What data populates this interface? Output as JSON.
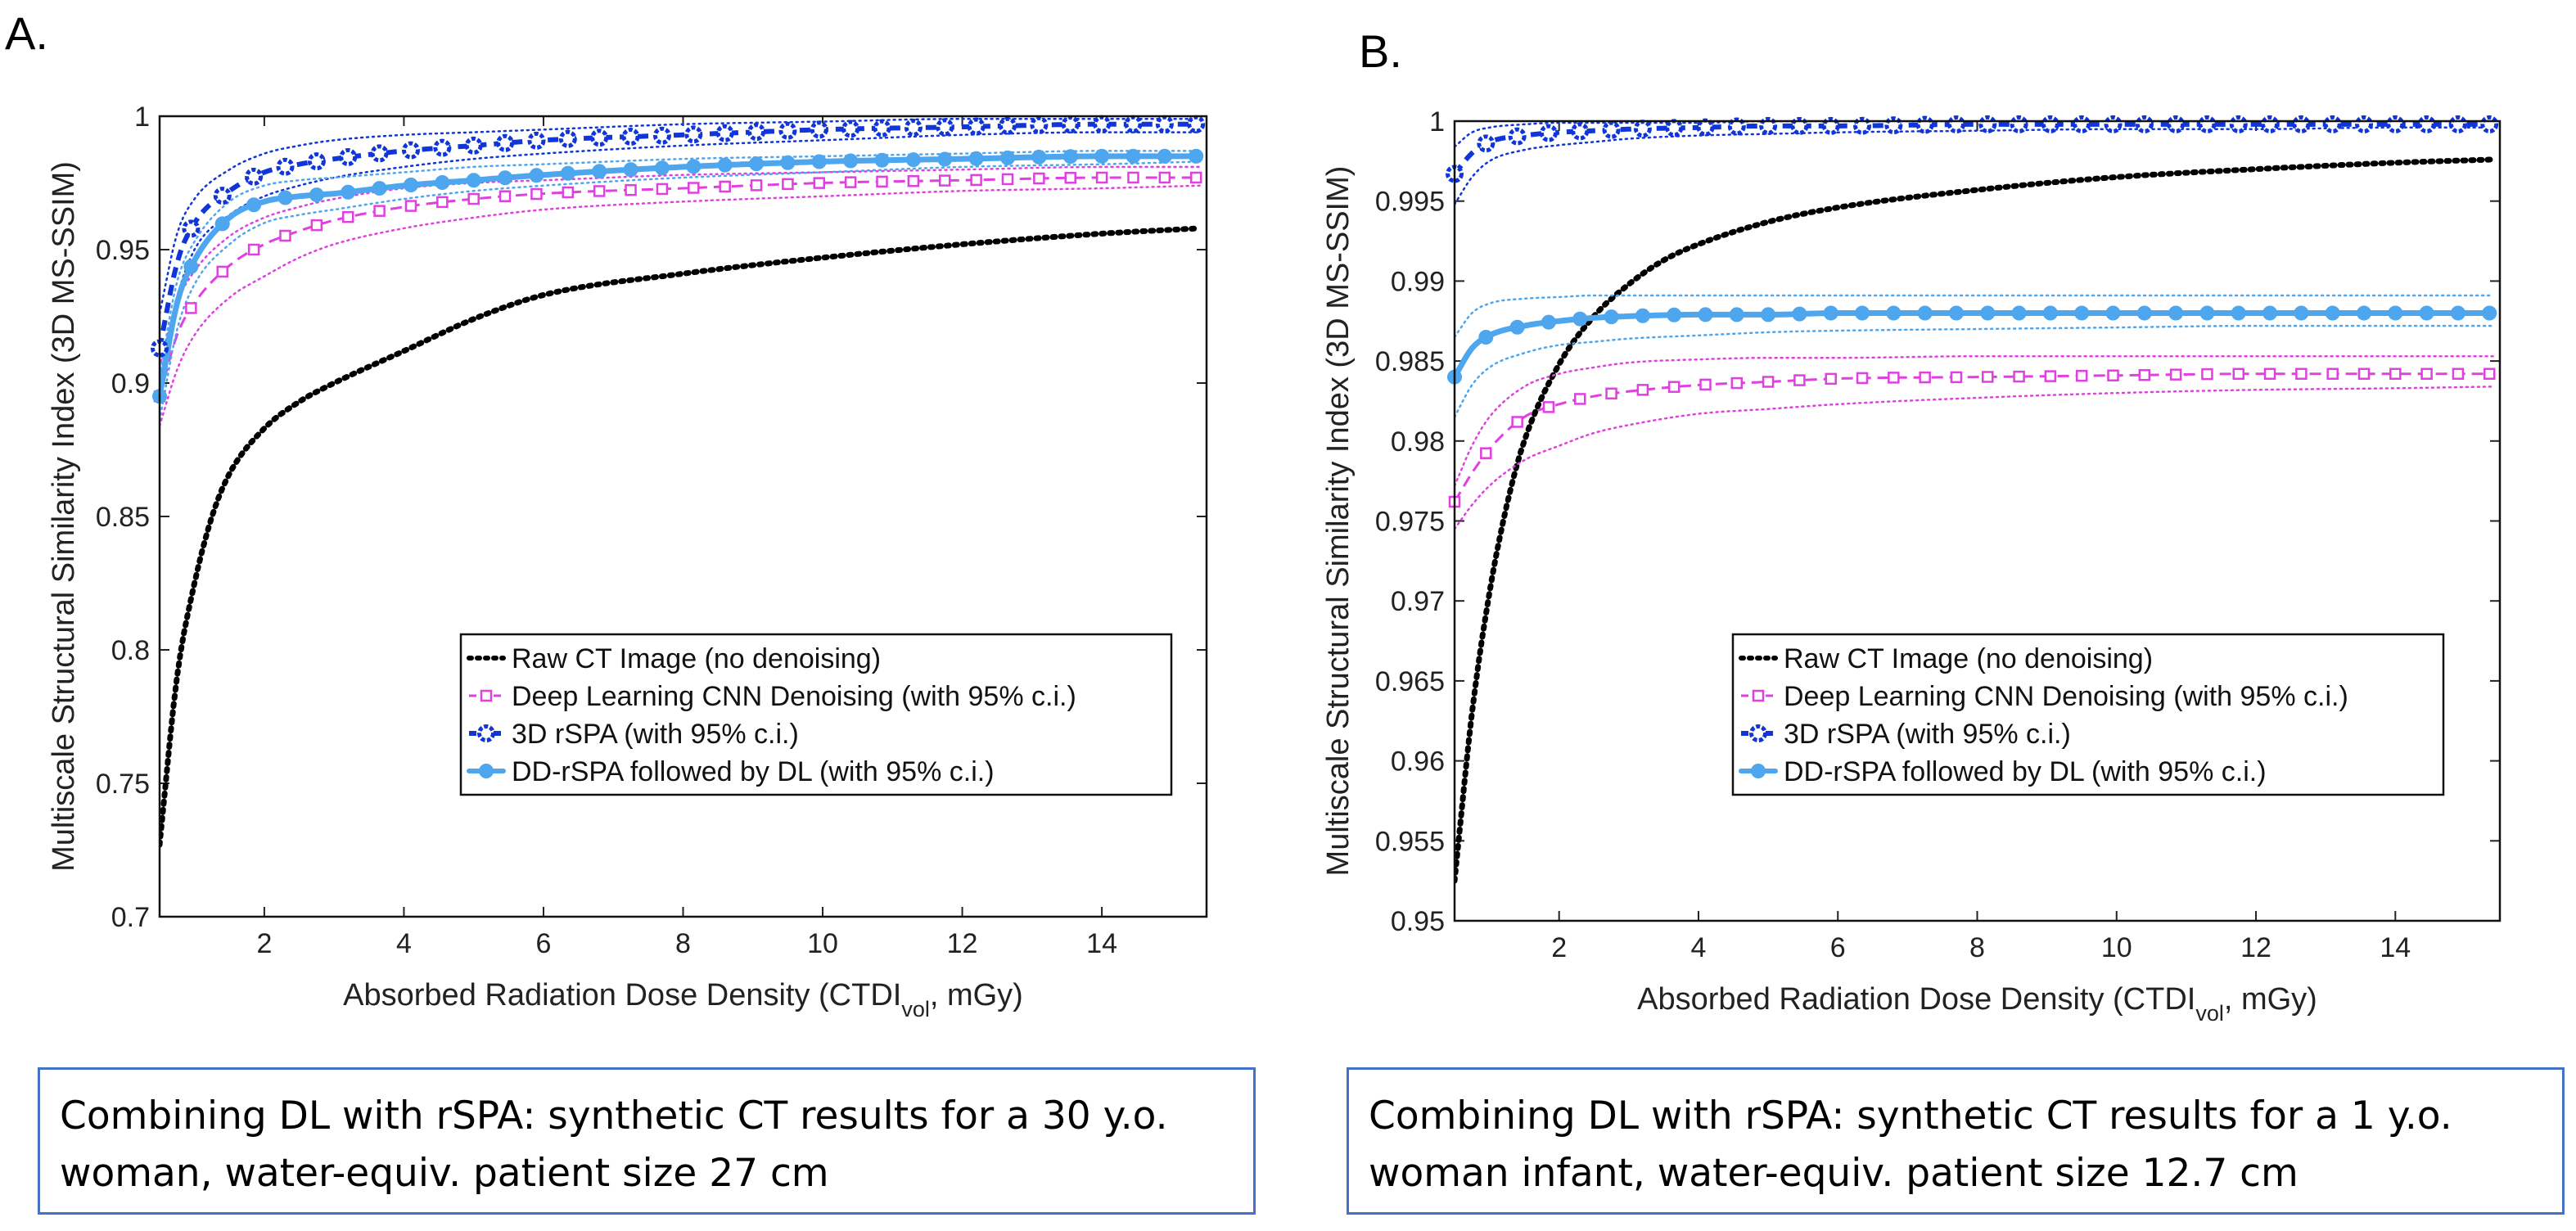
{
  "panels": [
    {
      "letter": "A.",
      "caption_line1": "Combining DL with rSPA: synthetic CT results for a 30 y.o.",
      "caption_line2": "woman, water-equiv. patient size 27 cm"
    },
    {
      "letter": "B.",
      "caption_line1": "Combining DL with rSPA: synthetic CT results for a 1 y.o.",
      "caption_line2": "woman infant, water-equiv. patient size 12.7 cm"
    }
  ],
  "colors": {
    "raw": "#000000",
    "dl": "#e040e0",
    "rspa": "#1035d8",
    "dd": "#4da6ee",
    "caption_border": "#4472c4"
  },
  "chart_data": [
    {
      "type": "line",
      "panel": "A",
      "xlabel_main": "Absorbed Radiation Dose Density (CTDI",
      "xlabel_sub": "vol",
      "xlabel_tail": ", mGy)",
      "ylabel": "Multiscale Structural Similarity Index (3D MS-SSIM)",
      "xlim": [
        0.5,
        15.5
      ],
      "ylim": [
        0.7,
        1.0
      ],
      "xticks": [
        2,
        4,
        6,
        8,
        10,
        12,
        14
      ],
      "yticks": [
        0.7,
        0.75,
        0.8,
        0.85,
        0.9,
        0.95,
        1
      ],
      "ytick_labels": [
        "0.7",
        "0.75",
        "0.8",
        "0.85",
        "0.9",
        "0.95",
        "1"
      ],
      "legend": [
        "Raw CT Image (no denoising)",
        "Deep Learning CNN Denoising (with 95% c.i.)",
        "3D rSPA (with 95% c.i.)",
        "DD-rSPA followed by DL (with 95% c.i.)"
      ],
      "series": [
        {
          "name": "Raw CT Image (no denoising)",
          "x": [
            0.5,
            0.75,
            1,
            1.25,
            1.5,
            2,
            2.5,
            3,
            4,
            5,
            6,
            8,
            10,
            12,
            14,
            15.4
          ],
          "values": [
            0.727,
            0.79,
            0.825,
            0.85,
            0.866,
            0.883,
            0.893,
            0.9,
            0.912,
            0.924,
            0.933,
            0.941,
            0.947,
            0.952,
            0.956,
            0.958
          ]
        },
        {
          "name": "Deep Learning CNN Denoising (with 95% c.i.)",
          "x": [
            0.5,
            0.75,
            1,
            1.5,
            2,
            2.5,
            3,
            4,
            5,
            6,
            8,
            10,
            12,
            14,
            15.4
          ],
          "values": [
            0.895,
            0.918,
            0.93,
            0.944,
            0.952,
            0.957,
            0.961,
            0.966,
            0.969,
            0.971,
            0.973,
            0.975,
            0.976,
            0.977,
            0.977
          ],
          "ci_low": [
            0.884,
            0.905,
            0.918,
            0.932,
            0.94,
            0.947,
            0.952,
            0.958,
            0.962,
            0.965,
            0.968,
            0.97,
            0.972,
            0.973,
            0.974
          ],
          "ci_high": [
            0.906,
            0.93,
            0.942,
            0.955,
            0.962,
            0.966,
            0.969,
            0.973,
            0.975,
            0.976,
            0.978,
            0.979,
            0.98,
            0.981,
            0.981
          ]
        },
        {
          "name": "3D rSPA (with 95% c.i.)",
          "x": [
            0.5,
            0.75,
            1,
            1.5,
            2,
            2.5,
            3,
            4,
            5,
            6,
            8,
            10,
            12,
            14,
            15.4
          ],
          "values": [
            0.913,
            0.945,
            0.96,
            0.972,
            0.979,
            0.982,
            0.984,
            0.987,
            0.989,
            0.991,
            0.993,
            0.995,
            0.996,
            0.997,
            0.997
          ],
          "ci_low": [
            0.9,
            0.932,
            0.95,
            0.963,
            0.97,
            0.974,
            0.977,
            0.981,
            0.984,
            0.986,
            0.989,
            0.991,
            0.993,
            0.994,
            0.994
          ],
          "ci_high": [
            0.926,
            0.956,
            0.969,
            0.98,
            0.986,
            0.989,
            0.991,
            0.993,
            0.994,
            0.995,
            0.997,
            0.998,
            0.999,
            0.999,
            0.999
          ]
        },
        {
          "name": "DD-rSPA followed by DL (with 95% c.i.)",
          "x": [
            0.5,
            0.75,
            1,
            1.5,
            2,
            2.5,
            3,
            4,
            5,
            6,
            8,
            10,
            12,
            14,
            15.4
          ],
          "values": [
            0.895,
            0.93,
            0.946,
            0.962,
            0.968,
            0.97,
            0.971,
            0.974,
            0.976,
            0.978,
            0.981,
            0.983,
            0.984,
            0.985,
            0.985
          ],
          "ci_low": [
            0.886,
            0.92,
            0.937,
            0.952,
            0.96,
            0.963,
            0.965,
            0.969,
            0.972,
            0.974,
            0.977,
            0.979,
            0.981,
            0.982,
            0.983
          ],
          "ci_high": [
            0.903,
            0.938,
            0.953,
            0.968,
            0.974,
            0.976,
            0.977,
            0.979,
            0.981,
            0.982,
            0.984,
            0.985,
            0.986,
            0.987,
            0.987
          ]
        }
      ]
    },
    {
      "type": "line",
      "panel": "B",
      "xlabel_main": "Absorbed Radiation Dose Density (CTDI",
      "xlabel_sub": "vol",
      "xlabel_tail": ", mGy)",
      "ylabel": "Multiscale Structural Similarity Index (3D MS-SSIM)",
      "xlim": [
        0.5,
        15.5
      ],
      "ylim": [
        0.95,
        1.0
      ],
      "xticks": [
        2,
        4,
        6,
        8,
        10,
        12,
        14
      ],
      "yticks": [
        0.95,
        0.955,
        0.96,
        0.965,
        0.97,
        0.975,
        0.98,
        0.985,
        0.99,
        0.995,
        1
      ],
      "ytick_labels": [
        "0.95",
        "0.955",
        "0.96",
        "0.965",
        "0.97",
        "0.975",
        "0.98",
        "0.985",
        "0.99",
        "0.995",
        "1"
      ],
      "legend": [
        "Raw CT Image (no denoising)",
        "Deep Learning CNN Denoising (with 95% c.i.)",
        "3D rSPA (with 95% c.i.)",
        "DD-rSPA followed by DL (with 95% c.i.)"
      ],
      "series": [
        {
          "name": "Raw CT Image (no denoising)",
          "x": [
            0.5,
            0.75,
            1,
            1.25,
            1.5,
            2,
            2.5,
            3,
            3.5,
            4,
            5,
            6,
            8,
            10,
            12,
            14,
            15.4
          ],
          "values": [
            0.9525,
            0.963,
            0.9705,
            0.976,
            0.98,
            0.9848,
            0.9878,
            0.9898,
            0.9913,
            0.9923,
            0.9937,
            0.9946,
            0.9957,
            0.9965,
            0.997,
            0.9974,
            0.9976
          ]
        },
        {
          "name": "Deep Learning CNN Denoising (with 95% c.i.)",
          "x": [
            0.5,
            0.75,
            1,
            1.5,
            2,
            2.5,
            3,
            4,
            5,
            6,
            8,
            10,
            12,
            14,
            15.4
          ],
          "values": [
            0.9762,
            0.978,
            0.9795,
            0.9815,
            0.9823,
            0.9828,
            0.9831,
            0.9835,
            0.9837,
            0.9839,
            0.984,
            0.9841,
            0.9842,
            0.9842,
            0.9842
          ],
          "ci_low": [
            0.9745,
            0.976,
            0.9772,
            0.9788,
            0.9797,
            0.9805,
            0.981,
            0.9817,
            0.982,
            0.9823,
            0.9827,
            0.983,
            0.9832,
            0.9833,
            0.9834
          ],
          "ci_high": [
            0.9772,
            0.9797,
            0.9815,
            0.9834,
            0.9842,
            0.9846,
            0.9849,
            0.9851,
            0.9852,
            0.9852,
            0.9853,
            0.9853,
            0.9853,
            0.9853,
            0.9853
          ]
        },
        {
          "name": "3D rSPA (with 95% c.i.)",
          "x": [
            0.5,
            0.75,
            1,
            1.5,
            2,
            2.5,
            3,
            4,
            5,
            6,
            8,
            10,
            12,
            14,
            15.4
          ],
          "values": [
            0.9967,
            0.998,
            0.9987,
            0.9991,
            0.9993,
            0.9994,
            0.9995,
            0.9996,
            0.9997,
            0.9997,
            0.9998,
            0.9998,
            0.9998,
            0.9998,
            0.9998
          ],
          "ci_low": [
            0.9948,
            0.9965,
            0.9975,
            0.9982,
            0.9985,
            0.9987,
            0.9989,
            0.9991,
            0.9992,
            0.9993,
            0.9994,
            0.9995,
            0.9995,
            0.9996,
            0.9996
          ],
          "ci_high": [
            0.9984,
            0.9993,
            0.9996,
            0.9998,
            0.9999,
            0.9999,
            0.9999,
            0.9999,
            1.0,
            1.0,
            1.0,
            1.0,
            1.0,
            1.0,
            1.0
          ]
        },
        {
          "name": "DD-rSPA followed by DL (with 95% c.i.)",
          "x": [
            0.5,
            0.75,
            1,
            1.5,
            2,
            2.5,
            3,
            4,
            5,
            6,
            8,
            10,
            12,
            14,
            15.4
          ],
          "values": [
            0.984,
            0.9858,
            0.9866,
            0.9872,
            0.9875,
            0.9877,
            0.9878,
            0.9879,
            0.9879,
            0.988,
            0.988,
            0.988,
            0.988,
            0.988,
            0.988
          ],
          "ci_low": [
            0.9815,
            0.9835,
            0.9846,
            0.9855,
            0.986,
            0.9862,
            0.9864,
            0.9866,
            0.9868,
            0.9869,
            0.987,
            0.9871,
            0.9872,
            0.9872,
            0.9872
          ],
          "ci_high": [
            0.9865,
            0.988,
            0.9886,
            0.9889,
            0.989,
            0.9891,
            0.9891,
            0.9891,
            0.9891,
            0.9891,
            0.9891,
            0.9891,
            0.9891,
            0.9891,
            0.9891
          ]
        }
      ]
    }
  ]
}
